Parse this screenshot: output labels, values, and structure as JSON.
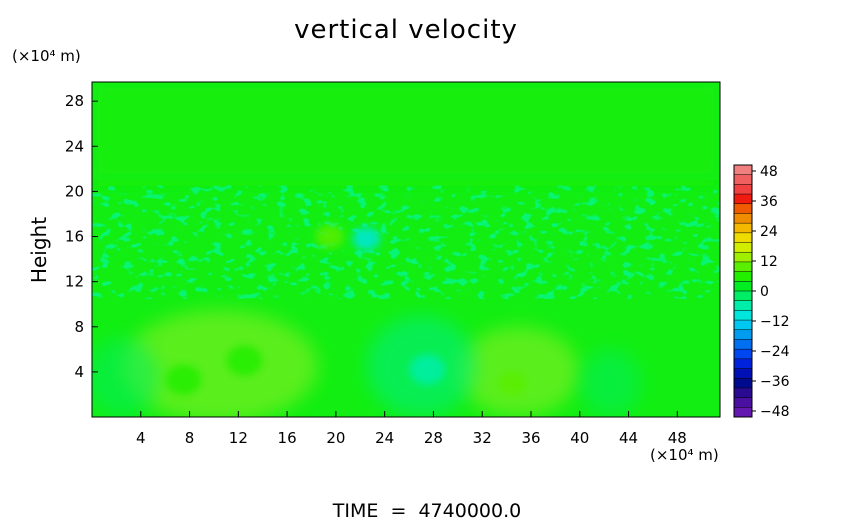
{
  "chart_data": {
    "type": "heatmap",
    "title": "vertical velocity",
    "ylabel": "Height",
    "x_unit_label": "(×10⁴ m)",
    "y_unit_label": "(×10⁴ m)",
    "x_ticks": [
      4,
      8,
      12,
      16,
      20,
      24,
      28,
      32,
      36,
      40,
      44,
      48
    ],
    "y_ticks": [
      4,
      8,
      12,
      16,
      20,
      24,
      28
    ],
    "xlim": [
      0,
      51.5
    ],
    "ylim": [
      0,
      29.7
    ],
    "colorbar": {
      "ticks": [
        48,
        36,
        24,
        12,
        0,
        -12,
        -24,
        -36,
        -48
      ],
      "range": [
        -48,
        48
      ],
      "colors_top_to_bottom": [
        "#f08080",
        "#f06060",
        "#f04040",
        "#f01a10",
        "#f05a00",
        "#f08c00",
        "#f4b800",
        "#eedc00",
        "#d2ee00",
        "#a0ee00",
        "#5aee00",
        "#22ee00",
        "#00ee22",
        "#00ee66",
        "#00eeaa",
        "#00e6dc",
        "#00c8f0",
        "#009cf0",
        "#0070f0",
        "#0046f0",
        "#0022dc",
        "#0010b4",
        "#000a8c",
        "#2a0a90",
        "#4a10a0",
        "#6418b0"
      ]
    },
    "field_features": [
      {
        "x": 7.5,
        "y": 3.3,
        "w": 5.0,
        "sign": "positive",
        "note": "weak updraft cell"
      },
      {
        "x": 12.5,
        "y": 5.0,
        "w": 4.0,
        "sign": "positive",
        "note": "weak updraft cell"
      },
      {
        "x": 27.5,
        "y": 4.2,
        "w": -5.0,
        "sign": "negative",
        "note": "weak downdraft cell"
      },
      {
        "x": 34.5,
        "y": 3.0,
        "w": 6.0,
        "sign": "positive",
        "note": "updraft cell"
      },
      {
        "x": 19.5,
        "y": 16.0,
        "w": 6.0,
        "sign": "positive",
        "note": "small updraft"
      },
      {
        "x": 22.5,
        "y": 15.8,
        "w": -6.0,
        "sign": "negative",
        "note": "small downdraft"
      }
    ],
    "footer": "TIME  =  4740000.0"
  }
}
